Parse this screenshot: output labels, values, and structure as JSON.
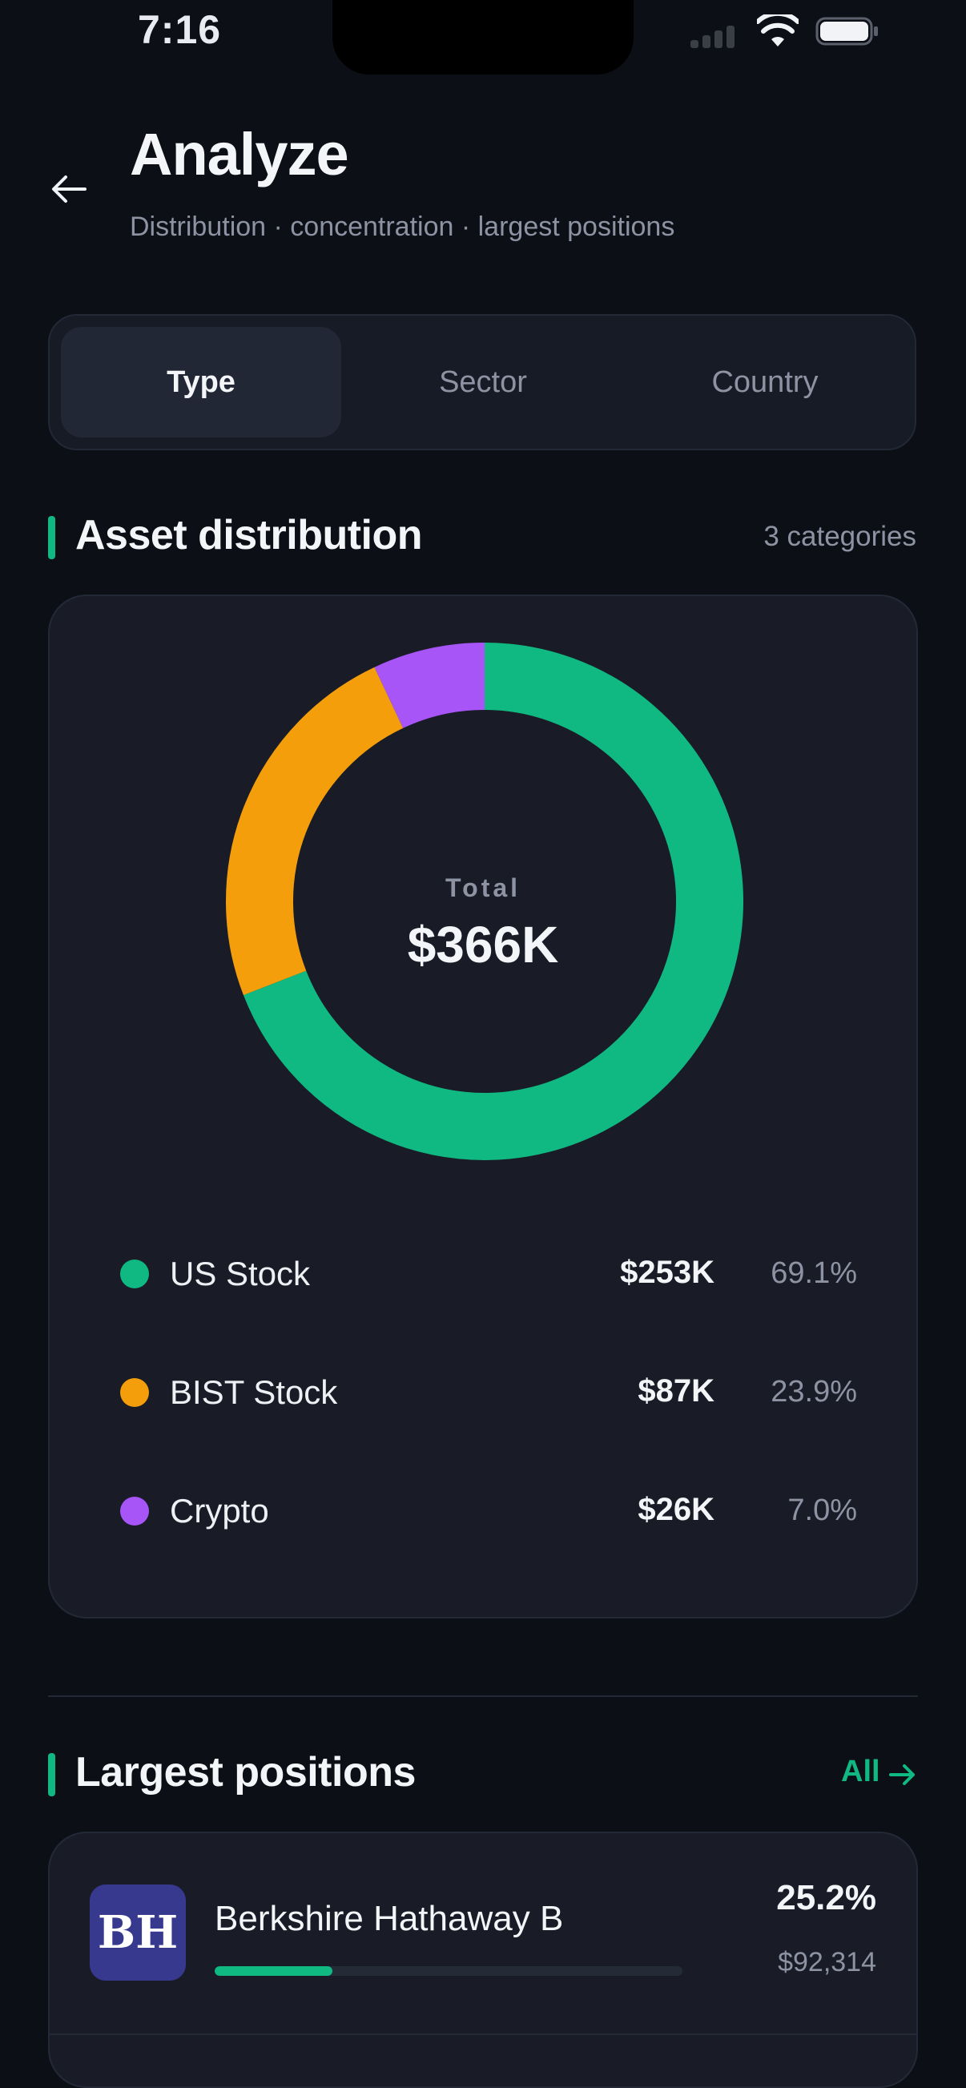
{
  "status_bar": {
    "time": "7:16"
  },
  "header": {
    "title": "Analyze",
    "subtitle": "Distribution · concentration · largest positions"
  },
  "tabs": [
    {
      "label": "Type",
      "active": true
    },
    {
      "label": "Sector",
      "active": false
    },
    {
      "label": "Country",
      "active": false
    }
  ],
  "distribution": {
    "title": "Asset distribution",
    "meta": "3 categories",
    "center_label": "Total",
    "center_value": "$366K"
  },
  "chart_data": {
    "type": "pie",
    "categories": [
      "US Stock",
      "BIST Stock",
      "Crypto"
    ],
    "values": [
      69.1,
      23.9,
      7.0
    ],
    "amounts": [
      "$253K",
      "$87K",
      "$26K"
    ],
    "percents": [
      "69.1%",
      "23.9%",
      "7.0%"
    ],
    "colors": [
      "#10b981",
      "#f59e0b",
      "#a855f7"
    ]
  },
  "positions": {
    "title": "Largest positions",
    "see_all": "All",
    "items": [
      {
        "logo": "BH",
        "name": "Berkshire Hathaway B",
        "percent": "25.2%",
        "value": "$92,314",
        "share": 0.252
      }
    ]
  },
  "colors": {
    "accent": "#10b981",
    "background": "#0c0f16",
    "card": "#191c27"
  }
}
